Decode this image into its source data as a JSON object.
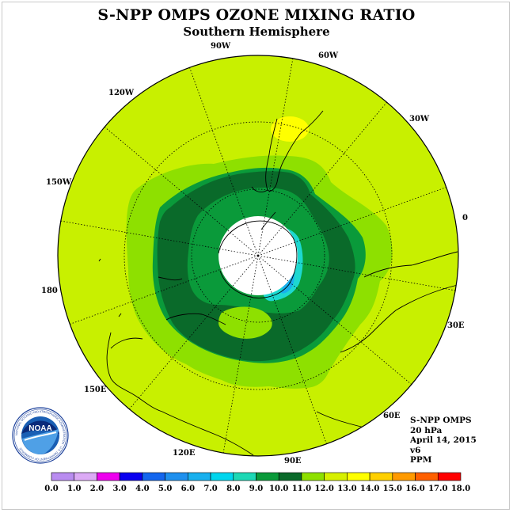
{
  "title": "S-NPP OMPS OZONE MIXING RATIO",
  "subtitle": "Southern Hemisphere",
  "longitude_labels": {
    "lon_90w": "90W",
    "lon_60w": "60W",
    "lon_30w": "30W",
    "lon_0": "0",
    "lon_30e": "30E",
    "lon_60e": "60E",
    "lon_90e": "90E",
    "lon_120e": "120E",
    "lon_150e": "150E",
    "lon_180": "180",
    "lon_150w": "150W",
    "lon_120w": "120W"
  },
  "info": {
    "instrument": "S-NPP OMPS",
    "level": "20 hPa",
    "date": "April 14, 2015",
    "version": "v6",
    "units": "PPM"
  },
  "logo": {
    "text": "NOAA",
    "ring_text": "NATIONAL OCEANIC AND ATMOSPHERIC ADMINISTRATION · U.S. DEPARTMENT OF COMMERCE"
  },
  "colorbar": {
    "ticks": [
      "0.0",
      "1.0",
      "2.0",
      "3.0",
      "4.0",
      "5.0",
      "6.0",
      "7.0",
      "8.0",
      "9.0",
      "10.0",
      "11.0",
      "12.0",
      "13.0",
      "14.0",
      "15.0",
      "16.0",
      "17.0",
      "18.0"
    ],
    "colors": [
      "#b98cf0",
      "#dcaaf5",
      "#ee00ee",
      "#0a00f0",
      "#1366ee",
      "#1e90ee",
      "#18b0ee",
      "#00d6ee",
      "#1dd8b5",
      "#0a9a3a",
      "#0a6a2a",
      "#8ee000",
      "#d7f000",
      "#ffff00",
      "#ffd000",
      "#ff9a00",
      "#ff6000",
      "#ff0000",
      "#b06030"
    ]
  },
  "map_colors": {
    "background_11_12": "#c8f000",
    "band_10_11": "#8ee000",
    "band_9_10": "#0a9a3a",
    "band_8_9": "#0a6a2a",
    "band_7_8": "#1dd8d0",
    "band_6_7": "#18b0ee",
    "high_12_13": "#ffff00",
    "no_data": "#ffffff"
  }
}
